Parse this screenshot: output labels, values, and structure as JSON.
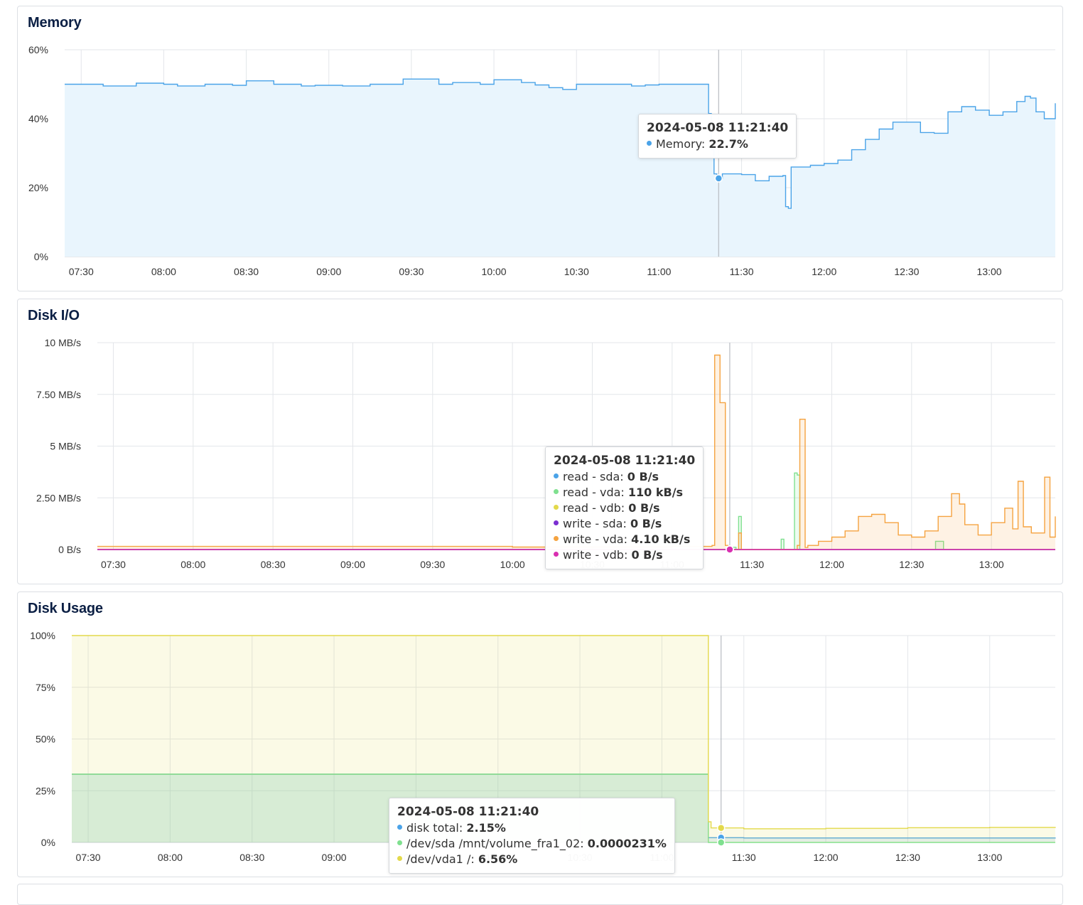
{
  "chart_data": [
    {
      "type": "area",
      "title": "Memory",
      "x_unit": "time (2024-05-08, HH:MM)",
      "xlim": [
        "07:24",
        "13:24"
      ],
      "x_ticks": [
        "07:30",
        "08:00",
        "08:30",
        "09:00",
        "09:30",
        "10:00",
        "10:30",
        "11:00",
        "11:30",
        "12:00",
        "12:30",
        "13:00"
      ],
      "y_ticks": [
        "0%",
        "20%",
        "40%",
        "60%"
      ],
      "ylim": [
        0,
        60
      ],
      "grid": true,
      "colors": {
        "line": "#4aa3e8",
        "fill": "#e9f5fd"
      },
      "series": [
        {
          "name": "Memory",
          "x": [
            "07:24",
            "07:38",
            "07:50",
            "08:00",
            "08:05",
            "08:15",
            "08:25",
            "08:30",
            "08:40",
            "08:50",
            "08:55",
            "09:05",
            "09:15",
            "09:25",
            "09:27",
            "09:40",
            "09:45",
            "09:55",
            "10:00",
            "10:10",
            "10:15",
            "10:20",
            "10:25",
            "10:30",
            "10:40",
            "10:50",
            "10:55",
            "11:00",
            "11:10",
            "11:17",
            "11:18",
            "11:19",
            "11:20",
            "11:21",
            "11:23",
            "11:30",
            "11:35",
            "11:40",
            "11:45",
            "11:46",
            "11:47",
            "11:48",
            "11:55",
            "12:00",
            "12:05",
            "12:10",
            "12:15",
            "12:20",
            "12:25",
            "12:35",
            "12:40",
            "12:45",
            "12:50",
            "12:55",
            "13:00",
            "13:05",
            "13:10",
            "13:13",
            "13:15",
            "13:17",
            "13:20",
            "13:24"
          ],
          "y": [
            50,
            49.5,
            50.3,
            50,
            49.5,
            50,
            49.7,
            51,
            50,
            49.5,
            49.7,
            49.5,
            50,
            50,
            51.5,
            50,
            50.5,
            50,
            51.3,
            50.5,
            49.8,
            49,
            48.5,
            50,
            50,
            49.5,
            49.8,
            50,
            50,
            50,
            41.5,
            31,
            24,
            22.7,
            24,
            23.8,
            22,
            23.3,
            23.5,
            14.5,
            14,
            26,
            26.5,
            27,
            28,
            31,
            34,
            37,
            39,
            36,
            35.8,
            42,
            43.5,
            42.5,
            41,
            42,
            45,
            46.5,
            46,
            42,
            40,
            44.5
          ]
        }
      ]
    },
    {
      "type": "area",
      "title": "Disk I/O",
      "x_unit": "time (2024-05-08, HH:MM)",
      "xlim": [
        "07:24",
        "13:24"
      ],
      "x_ticks": [
        "07:30",
        "08:00",
        "08:30",
        "09:00",
        "09:30",
        "10:00",
        "10:30",
        "11:00",
        "11:30",
        "12:00",
        "12:30",
        "13:00"
      ],
      "y_ticks": [
        "0 B/s",
        "2.50 MB/s",
        "5 MB/s",
        "7.50 MB/s",
        "10 MB/s"
      ],
      "ylim": [
        0,
        10
      ],
      "y_unit": "MB/s",
      "grid": true,
      "series": [
        {
          "name": "read - sda",
          "color": "#4aa3e8",
          "x": [
            "07:24",
            "13:24"
          ],
          "y": [
            0,
            0
          ]
        },
        {
          "name": "read - vda",
          "color": "#7fe08f",
          "x": [
            "07:24",
            "11:21",
            "11:22",
            "11:24",
            "11:25",
            "11:26",
            "11:40",
            "11:41",
            "11:42",
            "11:44",
            "11:46",
            "11:47",
            "11:48",
            "11:50",
            "12:00",
            "12:38",
            "12:39",
            "12:40",
            "12:42",
            "13:24"
          ],
          "y": [
            0,
            0,
            0.11,
            0,
            1.6,
            0,
            0,
            0.5,
            0,
            0,
            3.7,
            3.6,
            0,
            0,
            0,
            0,
            0.4,
            0.4,
            0,
            0
          ]
        },
        {
          "name": "read - vdb",
          "color": "#e3d94b",
          "x": [
            "07:24",
            "13:24"
          ],
          "y": [
            0,
            0
          ]
        },
        {
          "name": "write - sda",
          "color": "#7b2fd1",
          "x": [
            "07:24",
            "13:24"
          ],
          "y": [
            0,
            0
          ]
        },
        {
          "name": "write - vda",
          "color": "#f5a340",
          "x": [
            "07:24",
            "10:00",
            "11:00",
            "11:15",
            "11:16",
            "11:17",
            "11:18",
            "11:19",
            "11:20",
            "11:21",
            "11:22",
            "11:25",
            "11:26",
            "11:27",
            "11:47",
            "11:48",
            "11:49",
            "11:50",
            "11:51",
            "11:55",
            "12:00",
            "12:05",
            "12:10",
            "12:15",
            "12:20",
            "12:25",
            "12:30",
            "12:35",
            "12:40",
            "12:45",
            "12:48",
            "12:50",
            "12:55",
            "13:00",
            "13:05",
            "13:08",
            "13:10",
            "13:12",
            "13:15",
            "13:20",
            "13:22",
            "13:24"
          ],
          "y": [
            0.15,
            0.12,
            0.15,
            0.2,
            9.4,
            9.4,
            7.1,
            7.1,
            0.2,
            0.004,
            0,
            0.8,
            0,
            0,
            0.2,
            6.3,
            6.3,
            0.1,
            0.2,
            0.4,
            0.6,
            0.9,
            1.6,
            1.7,
            1.3,
            0.7,
            0.6,
            0.9,
            1.6,
            2.7,
            2.2,
            1.2,
            0.7,
            1.3,
            2.0,
            1.0,
            3.3,
            1.1,
            0.8,
            3.5,
            0.6,
            1.6
          ]
        },
        {
          "name": "write - vdb",
          "color": "#d92fb1",
          "x": [
            "07:24",
            "13:24"
          ],
          "y": [
            0,
            0
          ]
        }
      ]
    },
    {
      "type": "area",
      "title": "Disk Usage",
      "x_unit": "time (2024-05-08, HH:MM)",
      "xlim": [
        "07:24",
        "13:24"
      ],
      "x_ticks": [
        "07:30",
        "08:00",
        "08:30",
        "09:00",
        "09:30",
        "10:00",
        "10:30",
        "11:00",
        "11:30",
        "12:00",
        "12:30",
        "13:00"
      ],
      "y_ticks": [
        "0%",
        "25%",
        "50%",
        "75%",
        "100%"
      ],
      "ylim": [
        0,
        100
      ],
      "grid": true,
      "series": [
        {
          "name": "disk total",
          "color": "#4aa3e8",
          "x": [
            "07:24",
            "11:16",
            "11:17",
            "11:30",
            "13:24"
          ],
          "y": [
            33,
            33,
            2.3,
            2.15,
            2.3
          ]
        },
        {
          "name": "/dev/sda /mnt/volume_fra1_02",
          "color": "#7fe08f",
          "x": [
            "07:24",
            "11:16",
            "11:17",
            "13:24"
          ],
          "y": [
            33,
            33,
            0,
            0
          ]
        },
        {
          "name": "/dev/vda1 /",
          "color": "#e3d94b",
          "x": [
            "07:24",
            "11:16",
            "11:17",
            "11:18",
            "11:30",
            "12:00",
            "12:30",
            "13:00",
            "13:24"
          ],
          "y": [
            100,
            100,
            10,
            7,
            6.6,
            6.8,
            7.1,
            7.3,
            7.5
          ]
        }
      ]
    }
  ],
  "tooltips": {
    "memory": {
      "time": "2024-05-08 11:21:40",
      "rows": [
        {
          "label": "Memory",
          "value": "22.7%",
          "color": "#4aa3e8"
        }
      ]
    },
    "diskio": {
      "time": "2024-05-08 11:21:40",
      "rows": [
        {
          "label": "read - sda",
          "value": "0 B/s",
          "color": "#4aa3e8"
        },
        {
          "label": "read - vda",
          "value": "110 kB/s",
          "color": "#7fe08f"
        },
        {
          "label": "read - vdb",
          "value": "0 B/s",
          "color": "#e3d94b"
        },
        {
          "label": "write - sda",
          "value": "0 B/s",
          "color": "#7b2fd1"
        },
        {
          "label": "write - vda",
          "value": "4.10 kB/s",
          "color": "#f5a340"
        },
        {
          "label": "write - vdb",
          "value": "0 B/s",
          "color": "#d92fb1"
        }
      ]
    },
    "diskusage": {
      "time": "2024-05-08 11:21:40",
      "rows": [
        {
          "label": "disk total",
          "value": "2.15%",
          "color": "#4aa3e8"
        },
        {
          "label": "/dev/sda /mnt/volume_fra1_02",
          "value": "0.0000231%",
          "color": "#7fe08f"
        },
        {
          "label": "/dev/vda1 /",
          "value": "6.56%",
          "color": "#e3d94b"
        }
      ]
    }
  },
  "hover_time": "11:21"
}
